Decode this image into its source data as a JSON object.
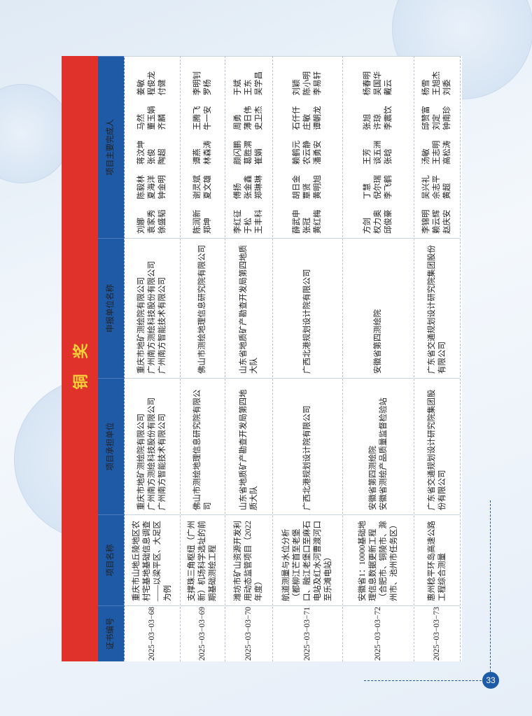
{
  "header": {
    "title": "铜奖"
  },
  "table": {
    "columns": [
      "证书编号",
      "项目名称",
      "项目承担单位",
      "申报单位名称",
      "项目主要完成人"
    ],
    "rows": [
      [
        "2025−03−03−68",
        "重庆市山地丘陵地区农村宅基地基础信息调查——以梁平区、大足区为例",
        [
          "重庆市地矿测绘院有限公司",
          "广州南方测绘科技股份有限公司",
          "广州南方智能技术有限公司"
        ],
        [
          "重庆市地矿测绘院有限公司",
          "广州南方测绘科技股份有限公司",
          "广州南方智能技术有限公司"
        ],
        [
          [
            "刘娜",
            "陈毅林",
            "蒋汶坤",
            "马然",
            "姜敏"
          ],
          [
            "袁家秀",
            "夏海洋",
            "张俊",
            "董玉娟",
            "程俊龙"
          ],
          [
            "徐盛韬",
            "钟金明",
            "陶超",
            "齐麟",
            "付健"
          ]
        ]
      ],
      [
        "2025−03−03−69",
        "支撑珠三角枢纽（广州新）机场科学选址的前期基础测绘工程",
        [
          "佛山市测绘地理信息研究院有限公司"
        ],
        [
          "佛山市测绘地理信息研究院有限公司"
        ],
        [
          [
            "陈润新",
            "谢灵斌",
            "谭燕",
            "王腾飞",
            "李明钊"
          ],
          [
            "郑坤",
            "夏文雄",
            "林森涛",
            "牛一安",
            "罗杨"
          ]
        ]
      ],
      [
        "2025−03−03−70",
        "潍坊市矿山资源开发利用动态监管项目（2022年度）",
        [
          "山东省地质矿产勘查开发局第四地质大队"
        ],
        [
          "山东省地质矿产勘查开发局第四地质大队"
        ],
        [
          [
            "李红征",
            "傅扬",
            "颜闪鹏",
            "周勇",
            "于斌"
          ],
          [
            "于松",
            "张金鑫",
            "葛胜渭",
            "薄日伟",
            "王东"
          ],
          [
            "王丰科",
            "郑琳琳",
            "崔娟",
            "史卫杰",
            "吴学昌"
          ]
        ]
      ],
      [
        "2025−03−03−71",
        "航道测量与水位分析（都柳江芒首至老堡口、融江老堡口至麻石电站及红水河曹渡河口至乐滩电站）",
        [
          "广西北港规划设计院有限公司"
        ],
        [
          "广西北港规划设计院有限公司"
        ],
        [
          [
            "薛武申",
            "胡日金",
            "赖鹤元",
            "石仟仟",
            "刘颖"
          ],
          [
            "张冠",
            "覃贤",
            "农云静",
            "庄敏",
            "陈小明"
          ],
          [
            "黄红梅",
            "黄明旭",
            "潘勇安",
            "谭朝龙",
            "李易轩"
          ]
        ]
      ],
      [
        "2025−03−03−72",
        "安徽省1：10000基础地理信息数据更新工程（合肥市、铜陵市、滁州市、池州市任务区）",
        [
          "安徽省第四测绘院",
          "安徽省测绘产品质量监督检验站"
        ],
        [
          "安徽省第四测绘院"
        ],
        [
          [
            "方剑",
            "丁慧",
            "王芳",
            "张旭",
            "杨春明"
          ],
          [
            "权力奥",
            "倪尔瑞",
            "谈五洲",
            "许琼",
            "吴国华"
          ],
          [
            "邱俊豪",
            "李飞鹤",
            "张晗",
            "李震饮",
            "戴云"
          ]
        ]
      ],
      [
        "2025−03−03−73",
        "惠州稔平环岛高速公路工程综合测量",
        [
          "广东省交通规划设计研究院集团股份有限公司"
        ],
        [
          "广东省交通规划设计研究院集团股份有限公司"
        ],
        [
          [
            "李锦明",
            "吴兴礼",
            "汤敏",
            "邱赞富",
            "杨雪"
          ],
          [
            "赖云辉",
            "佘志平",
            "王志明",
            "刘定",
            "王旭杰"
          ],
          [
            "赵庆安",
            "黄超",
            "高松涛",
            "钟南珍",
            "刘委"
          ]
        ]
      ]
    ]
  },
  "footer": {
    "page": "33"
  }
}
